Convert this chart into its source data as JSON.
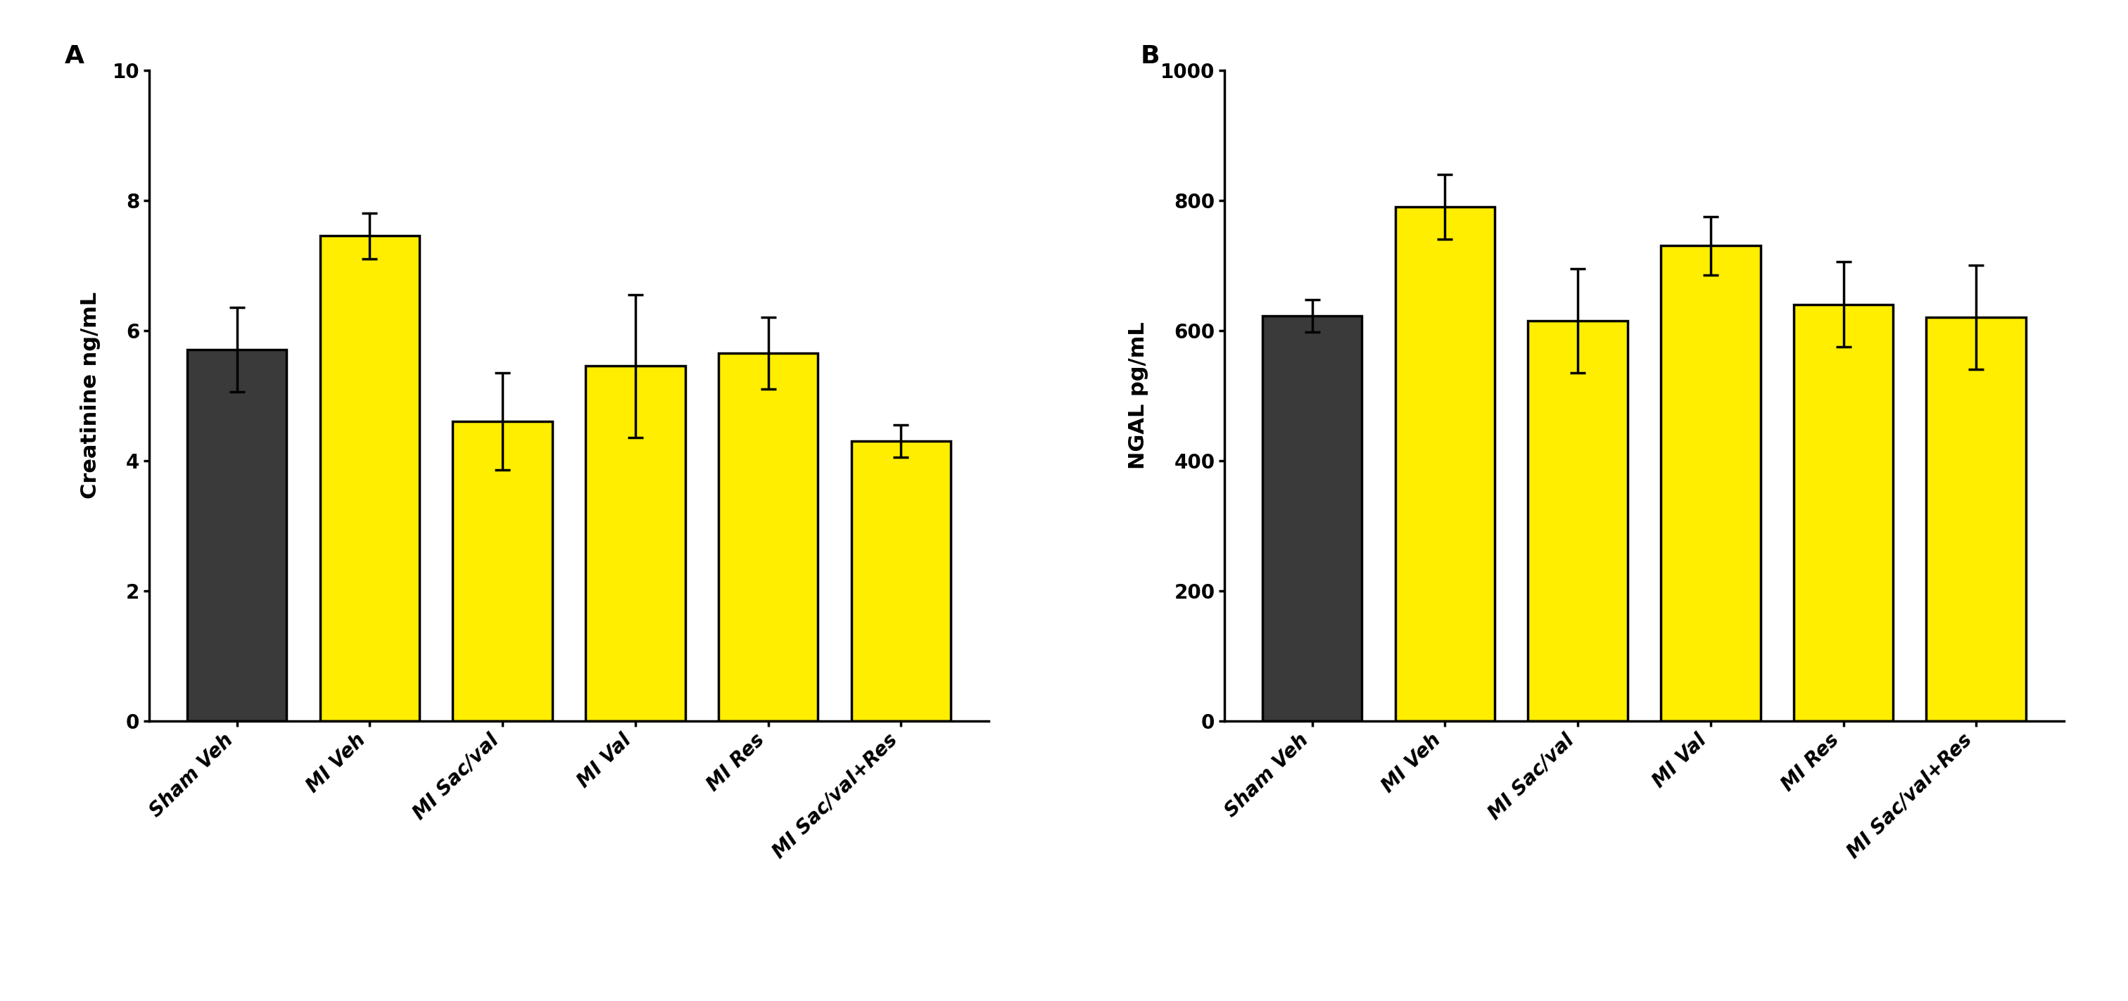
{
  "panel_A": {
    "label": "A",
    "categories": [
      "Sham Veh",
      "MI Veh",
      "MI Sac/val",
      "MI Val",
      "MI Res",
      "MI Sac/val+Res"
    ],
    "values": [
      5.7,
      7.45,
      4.6,
      5.45,
      5.65,
      4.3
    ],
    "errors": [
      0.65,
      0.35,
      0.75,
      1.1,
      0.55,
      0.25
    ],
    "bar_colors": [
      "#3a3a3a",
      "#ffee00",
      "#ffee00",
      "#ffee00",
      "#ffee00",
      "#ffee00"
    ],
    "ylabel": "Creatinine ng/mL",
    "ylim": [
      0,
      10
    ],
    "yticks": [
      0,
      2,
      4,
      6,
      8,
      10
    ]
  },
  "panel_B": {
    "label": "B",
    "categories": [
      "Sham Veh",
      "MI Veh",
      "MI Sac/val",
      "MI Val",
      "MI Res",
      "MI Sac/val+Res"
    ],
    "values": [
      622,
      790,
      615,
      730,
      640,
      620
    ],
    "errors": [
      25,
      50,
      80,
      45,
      65,
      80
    ],
    "bar_colors": [
      "#3a3a3a",
      "#ffee00",
      "#ffee00",
      "#ffee00",
      "#ffee00",
      "#ffee00"
    ],
    "ylabel": "NGAL pg/mL",
    "ylim": [
      0,
      1000
    ],
    "yticks": [
      0,
      200,
      400,
      600,
      800,
      1000
    ]
  },
  "bar_edgecolor": "#000000",
  "bar_linewidth": 2.5,
  "errorbar_color": "#000000",
  "errorbar_linewidth": 2.5,
  "errorbar_capsize": 8,
  "errorbar_capthick": 2.5,
  "tick_labelsize": 20,
  "ylabel_fontsize": 22,
  "panel_label_fontsize": 26,
  "xtick_rotation": 45,
  "background_color": "#ffffff",
  "bar_width": 0.75,
  "spine_linewidth": 2.5
}
